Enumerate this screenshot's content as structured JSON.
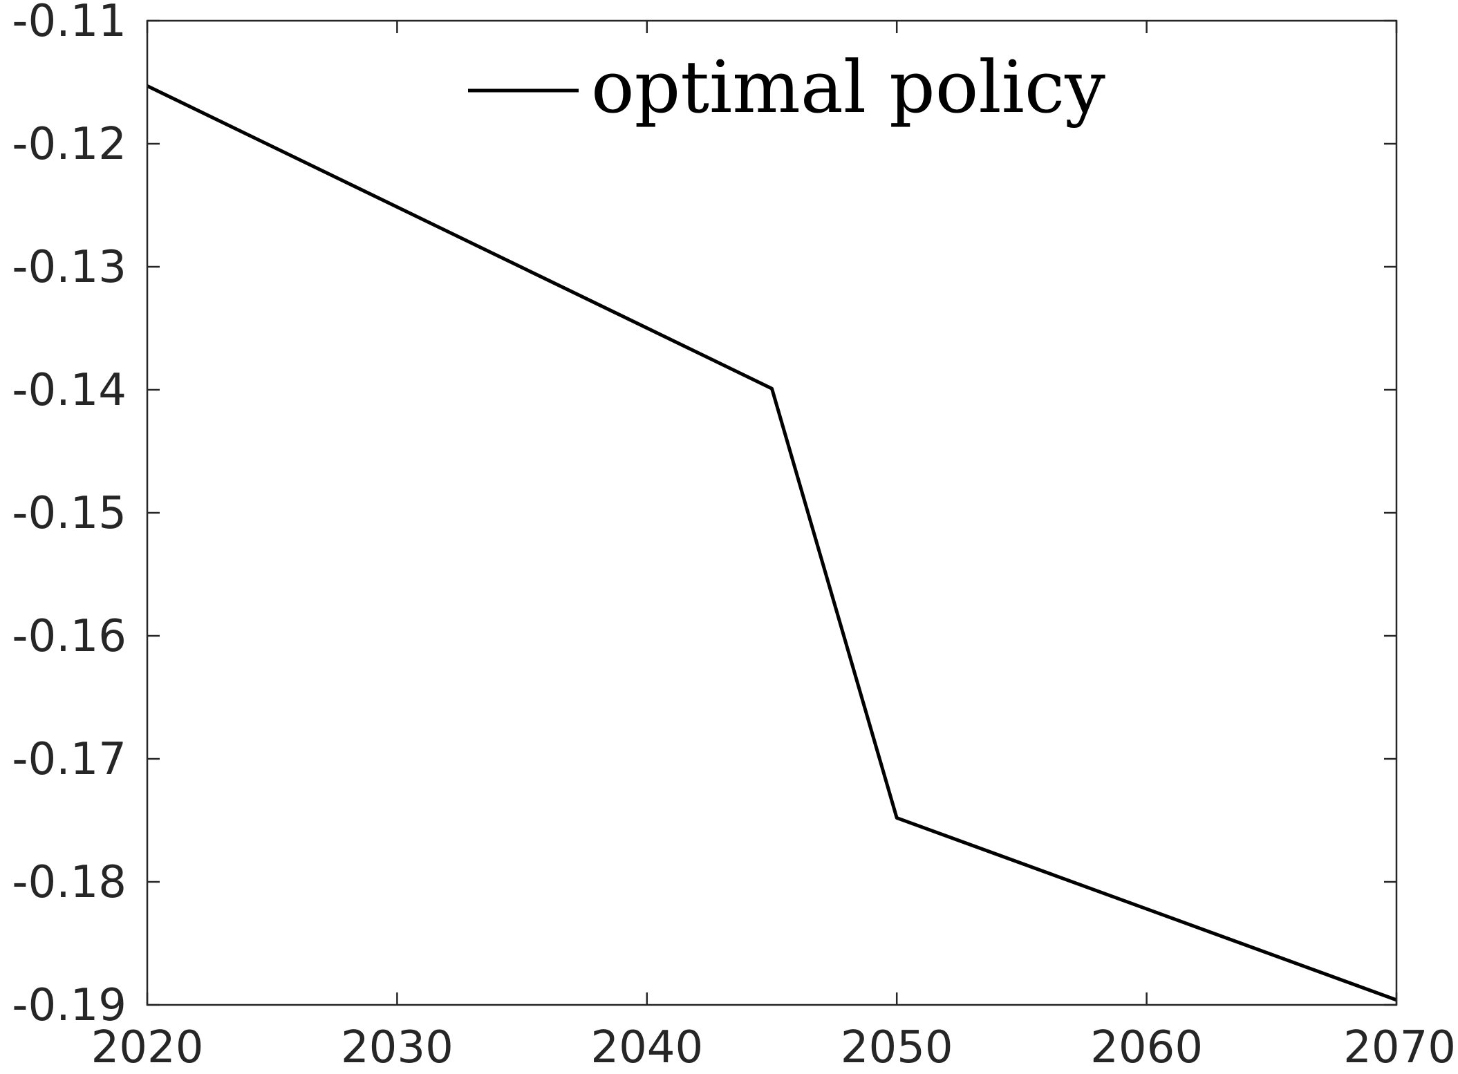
{
  "chart_data": {
    "type": "line",
    "title": "",
    "xlabel": "",
    "ylabel": "",
    "xlim": [
      2020,
      2070
    ],
    "ylim": [
      -0.19,
      -0.11
    ],
    "xticks": [
      2020,
      2030,
      2040,
      2050,
      2060,
      2070
    ],
    "yticks": [
      -0.11,
      -0.12,
      -0.13,
      -0.14,
      -0.15,
      -0.16,
      -0.17,
      -0.18,
      -0.19
    ],
    "xtick_labels": [
      "2020",
      "2030",
      "2040",
      "2050",
      "2060",
      "2070"
    ],
    "ytick_labels": [
      "-0.11",
      "-0.12",
      "-0.13",
      "-0.14",
      "-0.15",
      "-0.16",
      "-0.17",
      "-0.18",
      "-0.19"
    ],
    "grid": false,
    "legend_position": "top-center",
    "series": [
      {
        "name": "optimal policy",
        "color": "#000000",
        "x": [
          2020,
          2045,
          2050,
          2070
        ],
        "y": [
          -0.1153,
          -0.1399,
          -0.1748,
          -0.1896
        ]
      }
    ]
  }
}
